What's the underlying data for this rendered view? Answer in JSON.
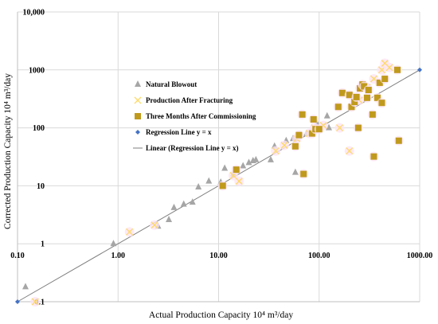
{
  "chart_data": {
    "type": "scatter",
    "x_scale": "log",
    "y_scale": "log",
    "xlim": [
      0.1,
      1000
    ],
    "ylim": [
      0.1,
      10000
    ],
    "x_ticks": [
      {
        "value": 0.1,
        "label": "0.10"
      },
      {
        "value": 1,
        "label": "1.00"
      },
      {
        "value": 10,
        "label": "10.00"
      },
      {
        "value": 100,
        "label": "100.00"
      },
      {
        "value": 1000,
        "label": "1000.00"
      }
    ],
    "y_ticks": [
      {
        "value": 0.1,
        "label": "0.1"
      },
      {
        "value": 1,
        "label": "1"
      },
      {
        "value": 10,
        "label": "10"
      },
      {
        "value": 100,
        "label": "100"
      },
      {
        "value": 1000,
        "label": "1000"
      },
      {
        "value": 10000,
        "label": "10,000"
      }
    ],
    "xlabel": "Actual Production Capacity 10⁴ m³/day",
    "ylabel": "Corrected Production Capacity 10⁴ m³/day",
    "grid": true,
    "legend_position": "left",
    "series": [
      {
        "name": "Natural Blowout",
        "marker": "triangle",
        "color": "#a6a6a6",
        "points": [
          [
            0.12,
            0.18
          ],
          [
            0.9,
            1.0
          ],
          [
            2.5,
            2.0
          ],
          [
            3.2,
            2.6
          ],
          [
            3.6,
            4.2
          ],
          [
            4.5,
            4.8
          ],
          [
            5.5,
            5.2
          ],
          [
            6.3,
            9.5
          ],
          [
            8.0,
            12.0
          ],
          [
            10.5,
            11.5
          ],
          [
            11.5,
            20.0
          ],
          [
            14.0,
            16.0
          ],
          [
            15.0,
            18.0
          ],
          [
            17.5,
            22.0
          ],
          [
            20.0,
            25.0
          ],
          [
            22.0,
            27.0
          ],
          [
            23.5,
            28.0
          ],
          [
            33.0,
            28.0
          ],
          [
            36.0,
            48.0
          ],
          [
            47.0,
            60.0
          ],
          [
            55.0,
            65.0
          ],
          [
            58.0,
            17.0
          ],
          [
            75.0,
            80.0
          ],
          [
            95.0,
            120.0
          ],
          [
            120.0,
            160.0
          ],
          [
            125.0,
            100.0
          ]
        ]
      },
      {
        "name": "Production After Fracturing",
        "marker": "x",
        "color": "#ffd966",
        "points": [
          [
            0.15,
            0.1
          ],
          [
            1.3,
            1.6
          ],
          [
            2.3,
            2.1
          ],
          [
            14.0,
            15.0
          ],
          [
            16.0,
            12.0
          ],
          [
            37.0,
            40.0
          ],
          [
            45.0,
            50.0
          ],
          [
            60.0,
            65.0
          ],
          [
            80.0,
            80.0
          ],
          [
            90.0,
            100.0
          ],
          [
            110.0,
            110.0
          ],
          [
            160.0,
            100.0
          ],
          [
            200.0,
            40.0
          ],
          [
            250.0,
            300.0
          ],
          [
            300.0,
            500.0
          ],
          [
            350.0,
            700.0
          ],
          [
            420.0,
            1000.0
          ],
          [
            450.0,
            1300.0
          ],
          [
            500.0,
            1100.0
          ]
        ]
      },
      {
        "name": "Three Months After Commissioning",
        "marker": "square",
        "color": "#c09a1d",
        "points": [
          [
            11.0,
            10.0
          ],
          [
            15.0,
            19.0
          ],
          [
            58.0,
            48.0
          ],
          [
            63.0,
            75.0
          ],
          [
            68.0,
            170.0
          ],
          [
            70.0,
            16.0
          ],
          [
            85.0,
            80.0
          ],
          [
            88.0,
            140.0
          ],
          [
            92.0,
            95.0
          ],
          [
            100.0,
            95.0
          ],
          [
            155.0,
            230.0
          ],
          [
            170.0,
            400.0
          ],
          [
            200.0,
            370.0
          ],
          [
            210.0,
            230.0
          ],
          [
            225.0,
            280.0
          ],
          [
            235.0,
            340.0
          ],
          [
            245.0,
            100.0
          ],
          [
            255.0,
            480.0
          ],
          [
            270.0,
            560.0
          ],
          [
            280.0,
            520.0
          ],
          [
            300.0,
            330.0
          ],
          [
            310.0,
            450.0
          ],
          [
            340.0,
            170.0
          ],
          [
            350.0,
            32.0
          ],
          [
            380.0,
            330.0
          ],
          [
            400.0,
            600.0
          ],
          [
            420.0,
            270.0
          ],
          [
            450.0,
            700.0
          ],
          [
            600.0,
            1000.0
          ],
          [
            620.0,
            60.0
          ]
        ]
      },
      {
        "name": "Regression Line y = x",
        "marker": "diamond",
        "color": "#4472c4",
        "points": [
          [
            0.1,
            0.1
          ],
          [
            1000,
            1000
          ]
        ]
      },
      {
        "name": "Linear (Regression Line y = x)",
        "marker": "line",
        "color": "#7f7f7f",
        "points": [
          [
            0.1,
            0.1
          ],
          [
            1000,
            1000
          ]
        ]
      }
    ]
  }
}
